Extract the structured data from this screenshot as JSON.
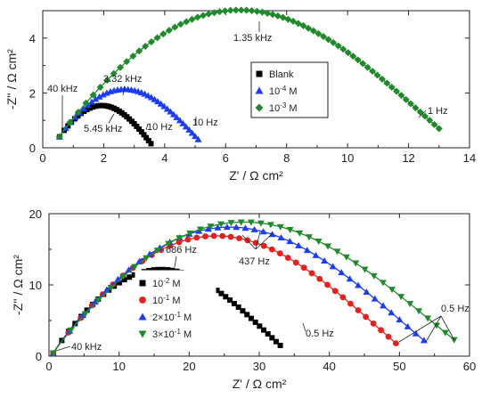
{
  "chart_data": [
    {
      "type": "scatter",
      "title": "",
      "xlabel": "Z' / Ω cm²",
      "ylabel": "-Z'' / Ω cm²",
      "xlim": [
        0,
        14
      ],
      "ylim": [
        0,
        5
      ],
      "xticks": [
        "0",
        "2",
        "4",
        "6",
        "8",
        "10",
        "12",
        "14"
      ],
      "yticks": [
        "0",
        "2",
        "4"
      ],
      "legend_position": "center",
      "series": [
        {
          "name": "Blank",
          "marker": "square",
          "color": "#000000",
          "x_start": 0.55,
          "x_end": 3.55,
          "peak": 1.28,
          "end_y": 0.15,
          "n": 34
        },
        {
          "name": "10⁻⁴ M",
          "marker": "triangle-up",
          "color": "#1a3cff",
          "x_start": 0.55,
          "x_end": 5.1,
          "peak": 1.86,
          "end_y": 0.3,
          "n": 40
        },
        {
          "name": "10⁻³ M",
          "marker": "diamond",
          "color": "#1f8a2a",
          "x_start": 0.55,
          "x_end": 13.0,
          "peak": 4.72,
          "end_y": 0.7,
          "n": 70
        }
      ],
      "annotations": [
        "40 kHz",
        "5.45 kHz",
        "3.32 kHz",
        "10 Hz",
        "10 Hz",
        "1.35 kHz",
        "1 Hz"
      ]
    },
    {
      "type": "scatter",
      "title": "",
      "xlabel": "Z' / Ω cm²",
      "ylabel": "-Z'' / Ω cm²",
      "xlim": [
        0,
        60
      ],
      "ylim": [
        0,
        20
      ],
      "xticks": [
        "0",
        "10",
        "20",
        "30",
        "40",
        "50",
        "60"
      ],
      "yticks": [
        "0",
        "10",
        "20"
      ],
      "legend_position": "left-center",
      "series": [
        {
          "name": "10⁻² M",
          "marker": "square",
          "color": "#000000",
          "x_start": 0.6,
          "x_end": 33.0,
          "peak": 11.8,
          "end_y": 1.5,
          "n": 48
        },
        {
          "name": "10⁻¹ M",
          "marker": "circle",
          "color": "#e8201c",
          "x_start": 0.6,
          "x_end": 49.5,
          "peak": 16.5,
          "end_y": 1.8,
          "n": 40
        },
        {
          "name": "2×10⁻¹ M",
          "marker": "triangle-up",
          "color": "#1a3cff",
          "x_start": 0.6,
          "x_end": 53.5,
          "peak": 17.7,
          "end_y": 2.2,
          "n": 40
        },
        {
          "name": "3×10⁻¹ M",
          "marker": "triangle-down",
          "color": "#1f8a2a",
          "x_start": 0.6,
          "x_end": 57.8,
          "peak": 18.4,
          "end_y": 2.3,
          "n": 40
        }
      ],
      "annotations": [
        "40 kHz",
        "686 Hz",
        "437 Hz",
        "0.5 Hz",
        "0.5 Hz"
      ]
    }
  ]
}
